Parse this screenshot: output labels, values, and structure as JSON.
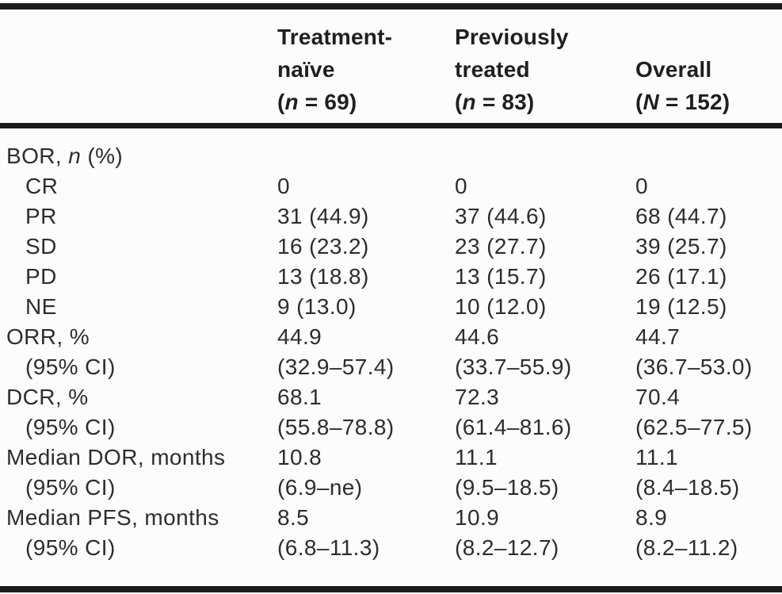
{
  "colors": {
    "background": "#fcfcfc",
    "text": "#2d2d2d",
    "header_text": "#1f1f1f",
    "rule": "#1b1b1b"
  },
  "table": {
    "header": {
      "row_label_column": "",
      "columns": [
        {
          "id": "treatment-naive",
          "lines": [
            [
              {
                "text": "Treatment-"
              }
            ],
            [
              {
                "text": "naïve"
              }
            ],
            [
              {
                "text": "("
              },
              {
                "text": "n",
                "italic": true
              },
              {
                "text": " = 69)"
              }
            ]
          ]
        },
        {
          "id": "previously-treated",
          "lines": [
            [
              {
                "text": "Previously"
              }
            ],
            [
              {
                "text": "treated"
              }
            ],
            [
              {
                "text": "("
              },
              {
                "text": "n",
                "italic": true
              },
              {
                "text": " = 83)"
              }
            ]
          ]
        },
        {
          "id": "overall",
          "lines": [
            [
              {
                "text": "Overall"
              }
            ],
            [
              {
                "text": "("
              },
              {
                "text": "N",
                "italic": true
              },
              {
                "text": " = 152)"
              }
            ]
          ]
        }
      ]
    },
    "rows": [
      {
        "id": "bor-header",
        "indent": false,
        "label": [
          {
            "text": "BOR, "
          },
          {
            "text": "n",
            "italic": true
          },
          {
            "text": " (%)"
          }
        ],
        "values": [
          "",
          "",
          ""
        ]
      },
      {
        "id": "bor-cr",
        "indent": true,
        "label": [
          {
            "text": "CR"
          }
        ],
        "values": [
          "0",
          "0",
          "0"
        ]
      },
      {
        "id": "bor-pr",
        "indent": true,
        "label": [
          {
            "text": "PR"
          }
        ],
        "values": [
          "31 (44.9)",
          "37 (44.6)",
          "68 (44.7)"
        ]
      },
      {
        "id": "bor-sd",
        "indent": true,
        "label": [
          {
            "text": "SD"
          }
        ],
        "values": [
          "16 (23.2)",
          "23 (27.7)",
          "39 (25.7)"
        ]
      },
      {
        "id": "bor-pd",
        "indent": true,
        "label": [
          {
            "text": "PD"
          }
        ],
        "values": [
          "13 (18.8)",
          "13 (15.7)",
          "26 (17.1)"
        ]
      },
      {
        "id": "bor-ne",
        "indent": true,
        "label": [
          {
            "text": "NE"
          }
        ],
        "values": [
          "9 (13.0)",
          "10 (12.0)",
          "19 (12.5)"
        ]
      },
      {
        "id": "orr",
        "indent": false,
        "label": [
          {
            "text": "ORR, %"
          }
        ],
        "values": [
          "44.9",
          "44.6",
          "44.7"
        ]
      },
      {
        "id": "orr-ci",
        "indent": true,
        "label": [
          {
            "text": "(95% CI)"
          }
        ],
        "values": [
          "(32.9–57.4)",
          "(33.7–55.9)",
          "(36.7–53.0)"
        ]
      },
      {
        "id": "dcr",
        "indent": false,
        "label": [
          {
            "text": "DCR, %"
          }
        ],
        "values": [
          "68.1",
          "72.3",
          "70.4"
        ]
      },
      {
        "id": "dcr-ci",
        "indent": true,
        "label": [
          {
            "text": "(95% CI)"
          }
        ],
        "values": [
          "(55.8–78.8)",
          "(61.4–81.6)",
          "(62.5–77.5)"
        ]
      },
      {
        "id": "median-dor",
        "indent": false,
        "label": [
          {
            "text": "Median DOR, months"
          }
        ],
        "values": [
          "10.8",
          "11.1",
          "11.1"
        ]
      },
      {
        "id": "median-dor-ci",
        "indent": true,
        "label": [
          {
            "text": "(95% CI)"
          }
        ],
        "values": [
          "(6.9–ne)",
          "(9.5–18.5)",
          "(8.4–18.5)"
        ]
      },
      {
        "id": "median-pfs",
        "indent": false,
        "label": [
          {
            "text": "Median PFS, months"
          }
        ],
        "values": [
          "8.5",
          "10.9",
          "8.9"
        ]
      },
      {
        "id": "median-pfs-ci",
        "indent": true,
        "label": [
          {
            "text": "(95% CI)"
          }
        ],
        "values": [
          "(6.8–11.3)",
          "(8.2–12.7)",
          "(8.2–11.2)"
        ]
      }
    ]
  },
  "chart_data": {
    "type": "table",
    "columns": [
      "",
      "Treatment-naïve (n = 69)",
      "Previously treated (n = 83)",
      "Overall (N = 152)"
    ],
    "rows": [
      [
        "BOR, n (%)",
        "",
        "",
        ""
      ],
      [
        "CR",
        "0",
        "0",
        "0"
      ],
      [
        "PR",
        "31 (44.9)",
        "37 (44.6)",
        "68 (44.7)"
      ],
      [
        "SD",
        "16 (23.2)",
        "23 (27.7)",
        "39 (25.7)"
      ],
      [
        "PD",
        "13 (18.8)",
        "13 (15.7)",
        "26 (17.1)"
      ],
      [
        "NE",
        "9 (13.0)",
        "10 (12.0)",
        "19 (12.5)"
      ],
      [
        "ORR, %",
        "44.9",
        "44.6",
        "44.7"
      ],
      [
        "(95% CI)",
        "(32.9–57.4)",
        "(33.7–55.9)",
        "(36.7–53.0)"
      ],
      [
        "DCR, %",
        "68.1",
        "72.3",
        "70.4"
      ],
      [
        "(95% CI)",
        "(55.8–78.8)",
        "(61.4–81.6)",
        "(62.5–77.5)"
      ],
      [
        "Median DOR, months",
        "10.8",
        "11.1",
        "11.1"
      ],
      [
        "(95% CI)",
        "(6.9–ne)",
        "(9.5–18.5)",
        "(8.4–18.5)"
      ],
      [
        "Median PFS, months",
        "8.5",
        "10.9",
        "8.9"
      ],
      [
        "(95% CI)",
        "(6.8–11.3)",
        "(8.2–12.7)",
        "(8.2–11.2)"
      ]
    ]
  }
}
